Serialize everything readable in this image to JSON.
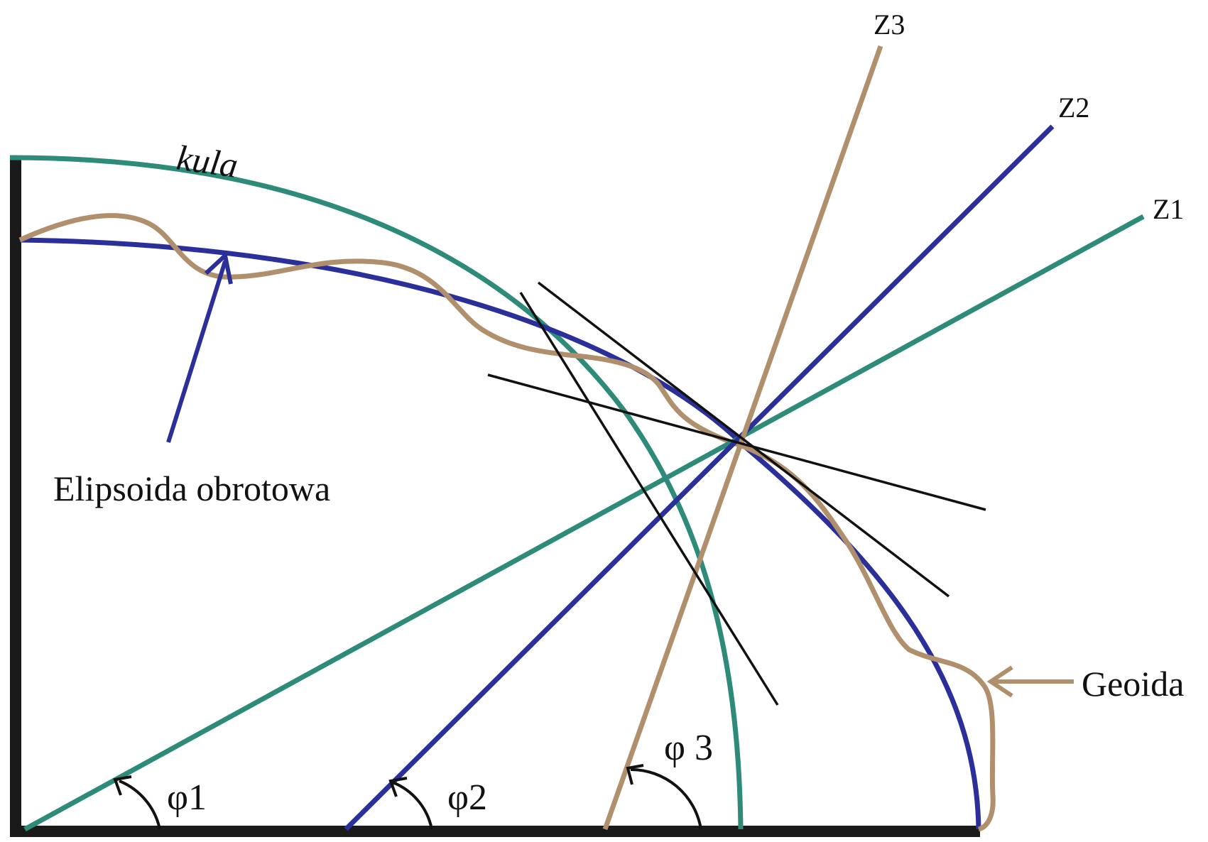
{
  "labels": {
    "sphere": "kula",
    "ellipsoid": "Elipsoida obrotowa",
    "geoid": "Geoida",
    "z1": "Z1",
    "z2": "Z2",
    "z3": "Z3",
    "phi1": "φ1",
    "phi2": "φ2",
    "phi3": "φ 3"
  },
  "colors": {
    "sphere": "#2E8B7A",
    "ellipsoid": "#2B2F9A",
    "geoid": "#B0906C",
    "tangent": "#111111",
    "axes": "#1A1A1A"
  }
}
